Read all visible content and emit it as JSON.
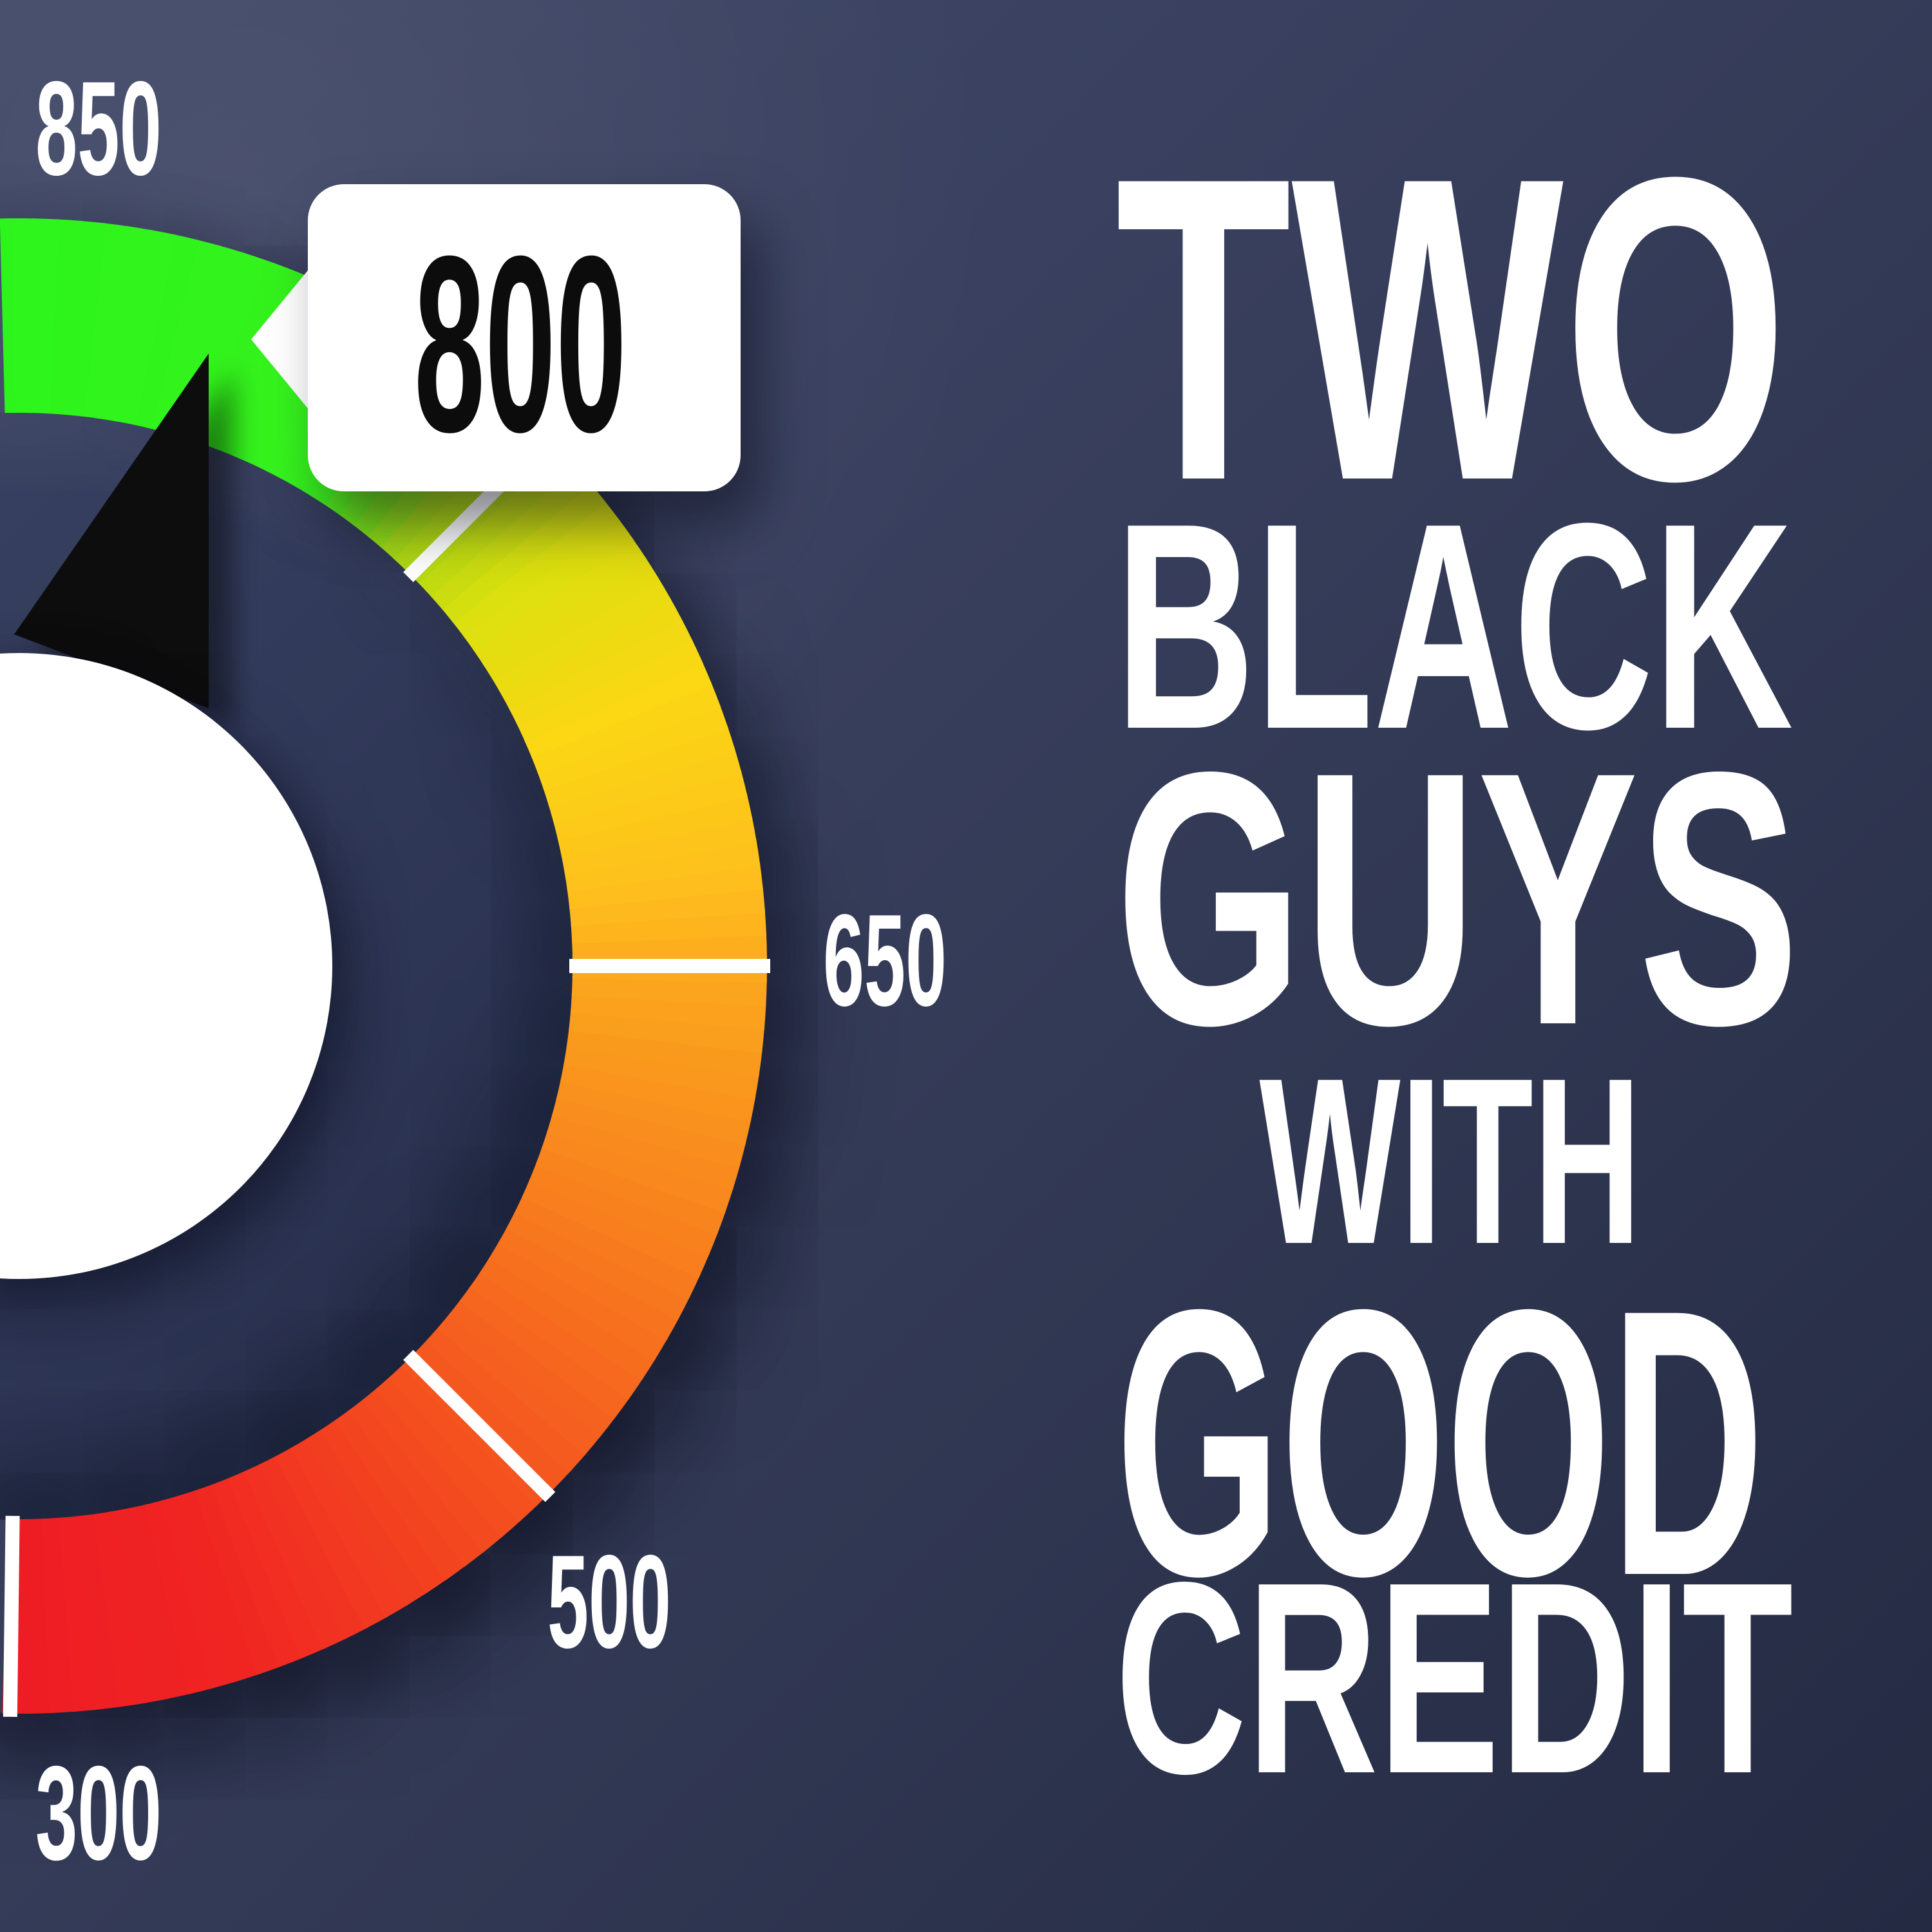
{
  "background": {
    "gradient_top_left": "#414968",
    "gradient_bottom_right": "#242a42"
  },
  "title": {
    "lines": [
      "TWO",
      "BLACK",
      "GUYS",
      "WITH",
      "GOOD",
      "CREDIT"
    ],
    "color": "#ffffff"
  },
  "gauge": {
    "score_bubble": {
      "value": "800",
      "bg": "#ffffff",
      "text_color": "#0c0c0c"
    },
    "scale_labels": {
      "l850": "850",
      "l650": "650",
      "l500": "500",
      "l300": "300"
    },
    "label_color": "#ffffff",
    "tick_color": "#ffffff",
    "needle_color": "#0a0a0b",
    "inner_circle_color": "#ffffff"
  },
  "chart_data": {
    "type": "gauge",
    "min": 300,
    "max": 850,
    "value": 800,
    "scale_ticks": [
      300,
      500,
      650,
      800,
      850
    ],
    "visible_tick_labels": [
      "850",
      "800",
      "650",
      "500",
      "300"
    ],
    "segments": [
      {
        "range": "300-500",
        "color_start": "#ee1c24",
        "color_end": "#f4511f"
      },
      {
        "range": "500-650",
        "color_start": "#f4511f",
        "color_end": "#fba41d"
      },
      {
        "range": "650-800",
        "color_start": "#fba41d",
        "color_end": "#a8d714"
      },
      {
        "range": "800-850",
        "color_start": "#a8d714",
        "color_end": "#2df51b"
      }
    ],
    "gradient_stops": [
      {
        "angle": -91.3,
        "color": "#ee1c24"
      },
      {
        "angle": -72.0,
        "color": "#f02522"
      },
      {
        "angle": -47.0,
        "color": "#f4511f"
      },
      {
        "angle": -22.0,
        "color": "#f8811e"
      },
      {
        "angle": -2.0,
        "color": "#fba41d"
      },
      {
        "angle": 8.0,
        "color": "#fec11d"
      },
      {
        "angle": 23.0,
        "color": "#fbd714"
      },
      {
        "angle": 38.0,
        "color": "#dbe00e"
      },
      {
        "angle": 48.0,
        "color": "#a8d714"
      },
      {
        "angle": 58.0,
        "color": "#37f11d"
      },
      {
        "angle": 91.5,
        "color": "#2df51b"
      }
    ],
    "tick_angles": [
      -90.7,
      -45,
      0,
      45
    ],
    "needle_angle_deg": 73,
    "grid": false,
    "legend_position": "none"
  }
}
